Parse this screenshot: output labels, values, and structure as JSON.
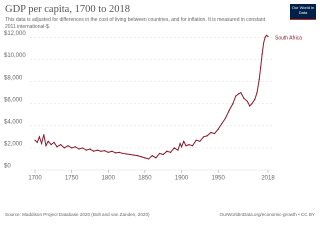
{
  "chart_data": {
    "type": "line",
    "title": "GDP per capita, 1700 to 2018",
    "subtitle": "This data is adjusted for differences in the cost of living between countries, and for inflation. It is measured in constant 2011 international-$.",
    "logo": "Our World in Data",
    "source": "Source: Maddison Project Database 2020 (Bolt and van Zanden, 2020)",
    "credit": "OurWorldInData.org/economic-growth • CC BY",
    "xlim": [
      1700,
      2018
    ],
    "ylim": [
      0,
      12500
    ],
    "xticks": [
      1700,
      1750,
      1800,
      1850,
      1900,
      1950,
      2018
    ],
    "yticks": [
      {
        "value": 0,
        "label": "$0"
      },
      {
        "value": 2000,
        "label": "$2,000"
      },
      {
        "value": 4000,
        "label": "$4,000"
      },
      {
        "value": 6000,
        "label": "$6,000"
      },
      {
        "value": 8000,
        "label": "$8,000"
      },
      {
        "value": 10000,
        "label": "$10,000"
      },
      {
        "value": 12000,
        "label": "$12,000"
      }
    ],
    "grid": true,
    "series": [
      {
        "name": "South Africa",
        "color": "#8b1a2b",
        "x": [
          1700,
          1703,
          1706,
          1709,
          1712,
          1715,
          1718,
          1722,
          1726,
          1730,
          1735,
          1740,
          1745,
          1750,
          1755,
          1760,
          1765,
          1770,
          1775,
          1780,
          1785,
          1790,
          1795,
          1800,
          1805,
          1810,
          1815,
          1820,
          1825,
          1830,
          1835,
          1840,
          1845,
          1850,
          1855,
          1860,
          1865,
          1870,
          1875,
          1880,
          1885,
          1890,
          1895,
          1898,
          1900,
          1903,
          1906,
          1910,
          1915,
          1920,
          1925,
          1930,
          1935,
          1940,
          1945,
          1950,
          1955,
          1960,
          1965,
          1970,
          1974,
          1978,
          1981,
          1985,
          1990,
          1993,
          1996,
          2000,
          2003,
          2006,
          2008,
          2010,
          2012,
          2014,
          2016,
          2018
        ],
        "values": [
          2700,
          2500,
          3000,
          2400,
          3200,
          2200,
          2600,
          2300,
          2500,
          2100,
          2300,
          2000,
          2200,
          2000,
          2100,
          1900,
          2000,
          1800,
          1900,
          1700,
          1800,
          1700,
          1750,
          1600,
          1700,
          1550,
          1600,
          1500,
          1450,
          1400,
          1350,
          1300,
          1200,
          1100,
          1000,
          1300,
          1100,
          1500,
          1400,
          1700,
          1600,
          2000,
          1800,
          2400,
          2100,
          2600,
          2200,
          2300,
          2200,
          2700,
          2600,
          3000,
          3100,
          3400,
          3300,
          3700,
          4200,
          4700,
          5400,
          6000,
          6700,
          6900,
          7000,
          6500,
          6200,
          5800,
          6000,
          6400,
          7000,
          8200,
          9300,
          10500,
          11500,
          12000,
          12200,
          12100
        ]
      }
    ]
  }
}
